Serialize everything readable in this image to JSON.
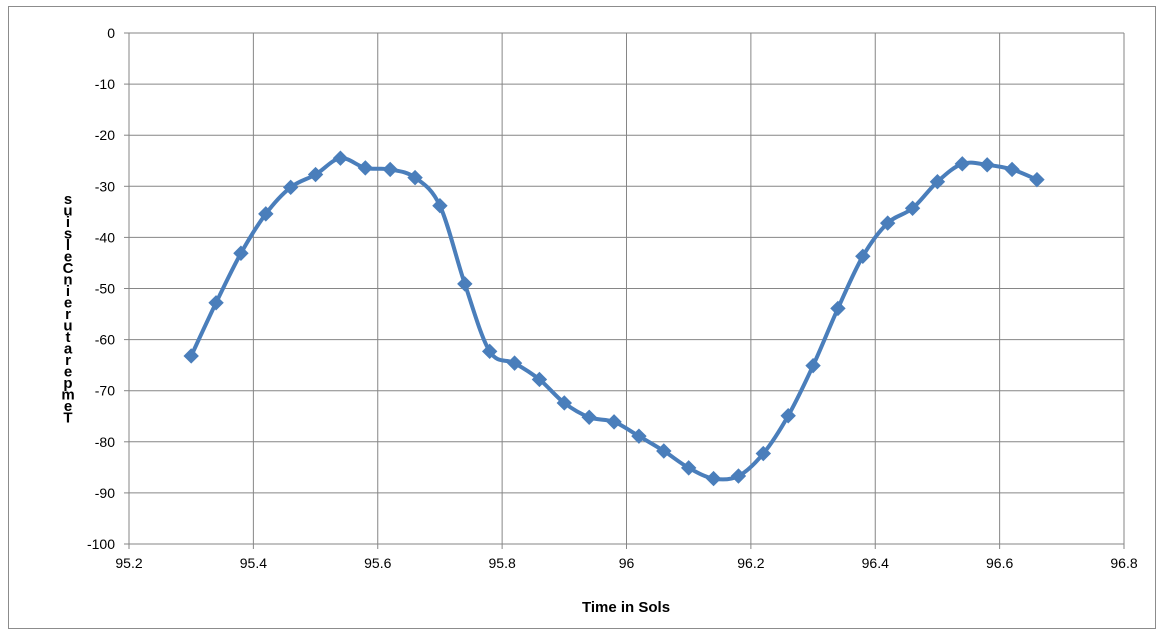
{
  "chart_data": {
    "type": "line",
    "title": "",
    "xlabel": "Time in Sols",
    "ylabel": "Temperature in Celsius",
    "xlim": [
      95.2,
      96.8
    ],
    "ylim": [
      -100,
      0
    ],
    "xticks": [
      95.2,
      95.4,
      95.6,
      95.8,
      96,
      96.2,
      96.4,
      96.6,
      96.8
    ],
    "xtick_labels": [
      "95.2",
      "95.4",
      "95.6",
      "95.8",
      "96",
      "96.2",
      "96.4",
      "96.6",
      "96.8"
    ],
    "yticks": [
      0,
      -10,
      -20,
      -30,
      -40,
      -50,
      -60,
      -70,
      -80,
      -90,
      -100
    ],
    "ytick_labels": [
      "0",
      "-10",
      "-20",
      "-30",
      "-40",
      "-50",
      "-60",
      "-70",
      "-80",
      "-90",
      "-100"
    ],
    "grid": true,
    "series_color": "#4a7ebb",
    "marker": "diamond",
    "series": [
      {
        "x": [
          95.3,
          95.34,
          95.38,
          95.42,
          95.46,
          95.5,
          95.54,
          95.58,
          95.62,
          95.66,
          95.7,
          95.74,
          95.78,
          95.82,
          95.86,
          95.9,
          95.94,
          95.98,
          96.02,
          96.06,
          96.1,
          96.14,
          96.18,
          96.22,
          96.26,
          96.3,
          96.34,
          96.38,
          96.42,
          96.46,
          96.5,
          96.54,
          96.58,
          96.62,
          96.66
        ],
        "y": [
          -63.2,
          -52.8,
          -43.1,
          -35.4,
          -30.2,
          -27.7,
          -24.5,
          -26.4,
          -26.7,
          -28.3,
          -33.8,
          -49.1,
          -62.3,
          -64.6,
          -67.8,
          -72.4,
          -75.2,
          -76.1,
          -78.9,
          -81.8,
          -85.1,
          -87.2,
          -86.7,
          -82.3,
          -74.9,
          -65.1,
          -53.9,
          -43.7,
          -37.2,
          -34.3,
          -29.1,
          -25.6,
          -25.8,
          -26.7,
          -28.7
        ]
      }
    ]
  }
}
